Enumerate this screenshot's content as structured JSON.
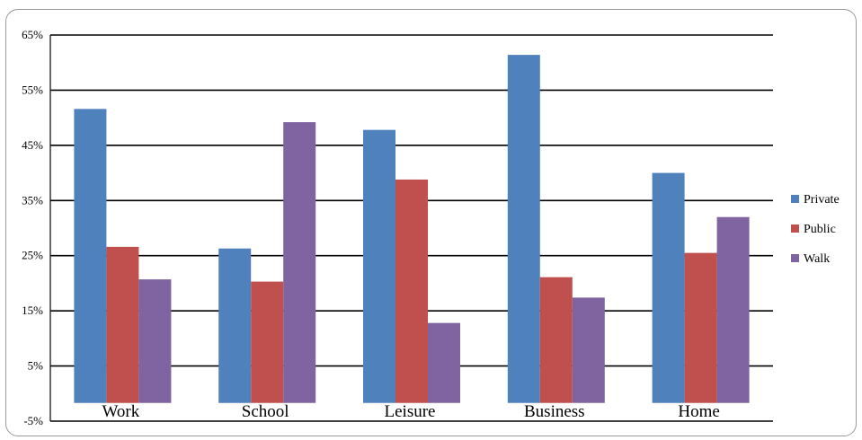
{
  "chart_data": {
    "type": "bar",
    "categories": [
      "Work",
      "School",
      "Leisure",
      "Business",
      "Home"
    ],
    "series": [
      {
        "name": "Private",
        "color": "#4F81BD",
        "values": [
          51.6,
          26.3,
          47.8,
          61.4,
          40.0
        ]
      },
      {
        "name": "Public",
        "color": "#C0504D",
        "values": [
          26.6,
          20.3,
          38.8,
          21.1,
          25.5
        ]
      },
      {
        "name": "Walk",
        "color": "#8064A2",
        "values": [
          20.7,
          49.2,
          12.8,
          17.4,
          32.0
        ]
      }
    ],
    "yticks": [
      65,
      55,
      45,
      35,
      25,
      15,
      5,
      -5
    ],
    "ytick_labels": [
      "65%",
      "55%",
      "45%",
      "35%",
      "25%",
      "15%",
      "5%",
      "-5%"
    ],
    "ylim": [
      -5,
      65
    ],
    "grid": true,
    "legend_position": "right"
  }
}
